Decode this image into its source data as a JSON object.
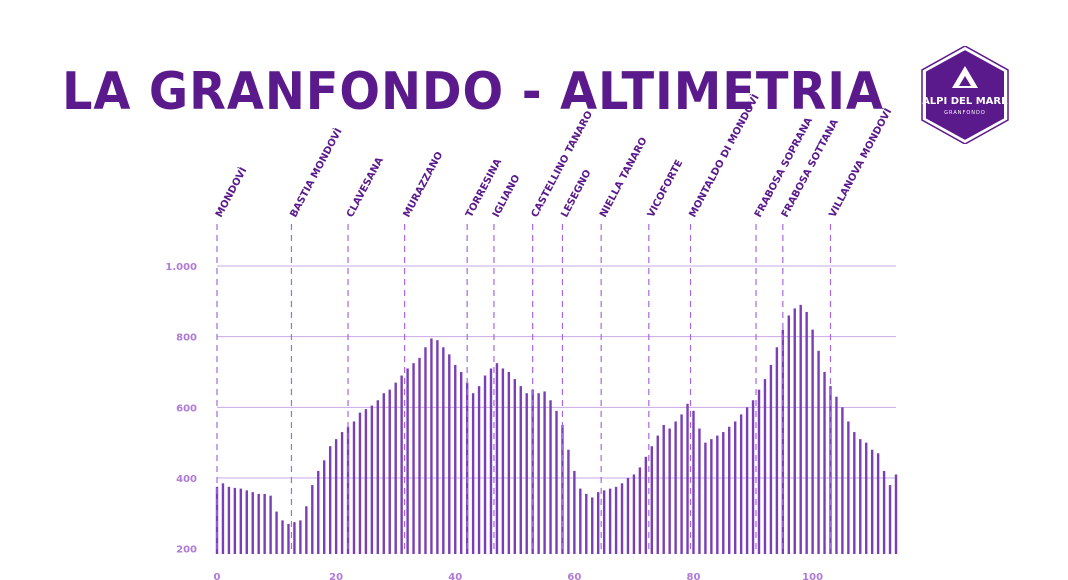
{
  "header": {
    "title": "LA GRANFONDO - ALTIMETRIA"
  },
  "logo": {
    "name": "ALPI DEL MARE",
    "sub": "GRANFONDO",
    "icon": "mountain-triangle-icon"
  },
  "colors": {
    "title": "#5b1a8c",
    "bars": "#7a3fb5",
    "grid": "#c9a8e6",
    "ticks": "#b07ad6",
    "markers": "#a868e0"
  },
  "chart_data": {
    "type": "bar",
    "title": "LA GRANFONDO - ALTIMETRIA",
    "xlabel": "",
    "ylabel": "",
    "xlim": [
      0,
      114
    ],
    "ylim": [
      170,
      1000
    ],
    "yticks": [
      {
        "value": 200,
        "label": "200"
      },
      {
        "value": 400,
        "label": "400"
      },
      {
        "value": 600,
        "label": "600"
      },
      {
        "value": 800,
        "label": "800"
      },
      {
        "value": 1000,
        "label": "1.000"
      }
    ],
    "xticks": [
      {
        "value": 0,
        "label": "0"
      },
      {
        "value": 20,
        "label": "20"
      },
      {
        "value": 40,
        "label": "40"
      },
      {
        "value": 60,
        "label": "60"
      },
      {
        "value": 80,
        "label": "80"
      },
      {
        "value": 100,
        "label": "100"
      }
    ],
    "grid": true,
    "x": [
      0,
      1,
      2,
      3,
      4,
      5,
      6,
      7,
      8,
      9,
      10,
      11,
      12,
      13,
      14,
      15,
      16,
      17,
      18,
      19,
      20,
      21,
      22,
      23,
      24,
      25,
      26,
      27,
      28,
      29,
      30,
      31,
      32,
      33,
      34,
      35,
      36,
      37,
      38,
      39,
      40,
      41,
      42,
      43,
      44,
      45,
      46,
      47,
      48,
      49,
      50,
      51,
      52,
      53,
      54,
      55,
      56,
      57,
      58,
      59,
      60,
      61,
      62,
      63,
      64,
      65,
      66,
      67,
      68,
      69,
      70,
      71,
      72,
      73,
      74,
      75,
      76,
      77,
      78,
      79,
      80,
      81,
      82,
      83,
      84,
      85,
      86,
      87,
      88,
      89,
      90,
      91,
      92,
      93,
      94,
      95,
      96,
      97,
      98,
      99,
      100,
      101,
      102,
      103,
      104,
      105,
      106,
      107,
      108,
      109,
      110,
      111,
      112,
      113,
      114
    ],
    "values": [
      375,
      385,
      375,
      372,
      370,
      365,
      360,
      355,
      355,
      350,
      305,
      280,
      270,
      275,
      280,
      320,
      380,
      420,
      450,
      490,
      510,
      530,
      545,
      560,
      585,
      595,
      605,
      620,
      640,
      650,
      670,
      690,
      710,
      725,
      740,
      770,
      795,
      790,
      770,
      750,
      720,
      700,
      670,
      640,
      660,
      690,
      710,
      725,
      710,
      700,
      680,
      660,
      640,
      650,
      640,
      645,
      620,
      590,
      550,
      480,
      420,
      370,
      355,
      345,
      360,
      365,
      370,
      375,
      385,
      400,
      410,
      430,
      460,
      490,
      520,
      550,
      540,
      560,
      580,
      610,
      590,
      540,
      500,
      510,
      520,
      530,
      545,
      560,
      580,
      600,
      620,
      650,
      680,
      720,
      770,
      820,
      860,
      880,
      890,
      870,
      820,
      760,
      700,
      660,
      630,
      600,
      560,
      530,
      510,
      500,
      480,
      470,
      420,
      380,
      410
    ]
  },
  "places": [
    {
      "name": "MONDOVÌ",
      "km": 0
    },
    {
      "name": "BASTIA MONDOVÌ",
      "km": 12.5
    },
    {
      "name": "CLAVESANA",
      "km": 22
    },
    {
      "name": "MURAZZANO",
      "km": 31.5
    },
    {
      "name": "TORRESINA",
      "km": 42
    },
    {
      "name": "IGLIANO",
      "km": 46.5
    },
    {
      "name": "CASTELLINO TANARO",
      "km": 53
    },
    {
      "name": "LESEGNO",
      "km": 58
    },
    {
      "name": "NIELLA TANARO",
      "km": 64.5
    },
    {
      "name": "VICOFORTE",
      "km": 72.5
    },
    {
      "name": "MONTALDO DI MONDOVÌ",
      "km": 79.5
    },
    {
      "name": "FRABOSA SOPRANA",
      "km": 90.5
    },
    {
      "name": "FRABOSA SOTTANA",
      "km": 95
    },
    {
      "name": "VILLANOVA MONDOVÌ",
      "km": 103
    }
  ]
}
